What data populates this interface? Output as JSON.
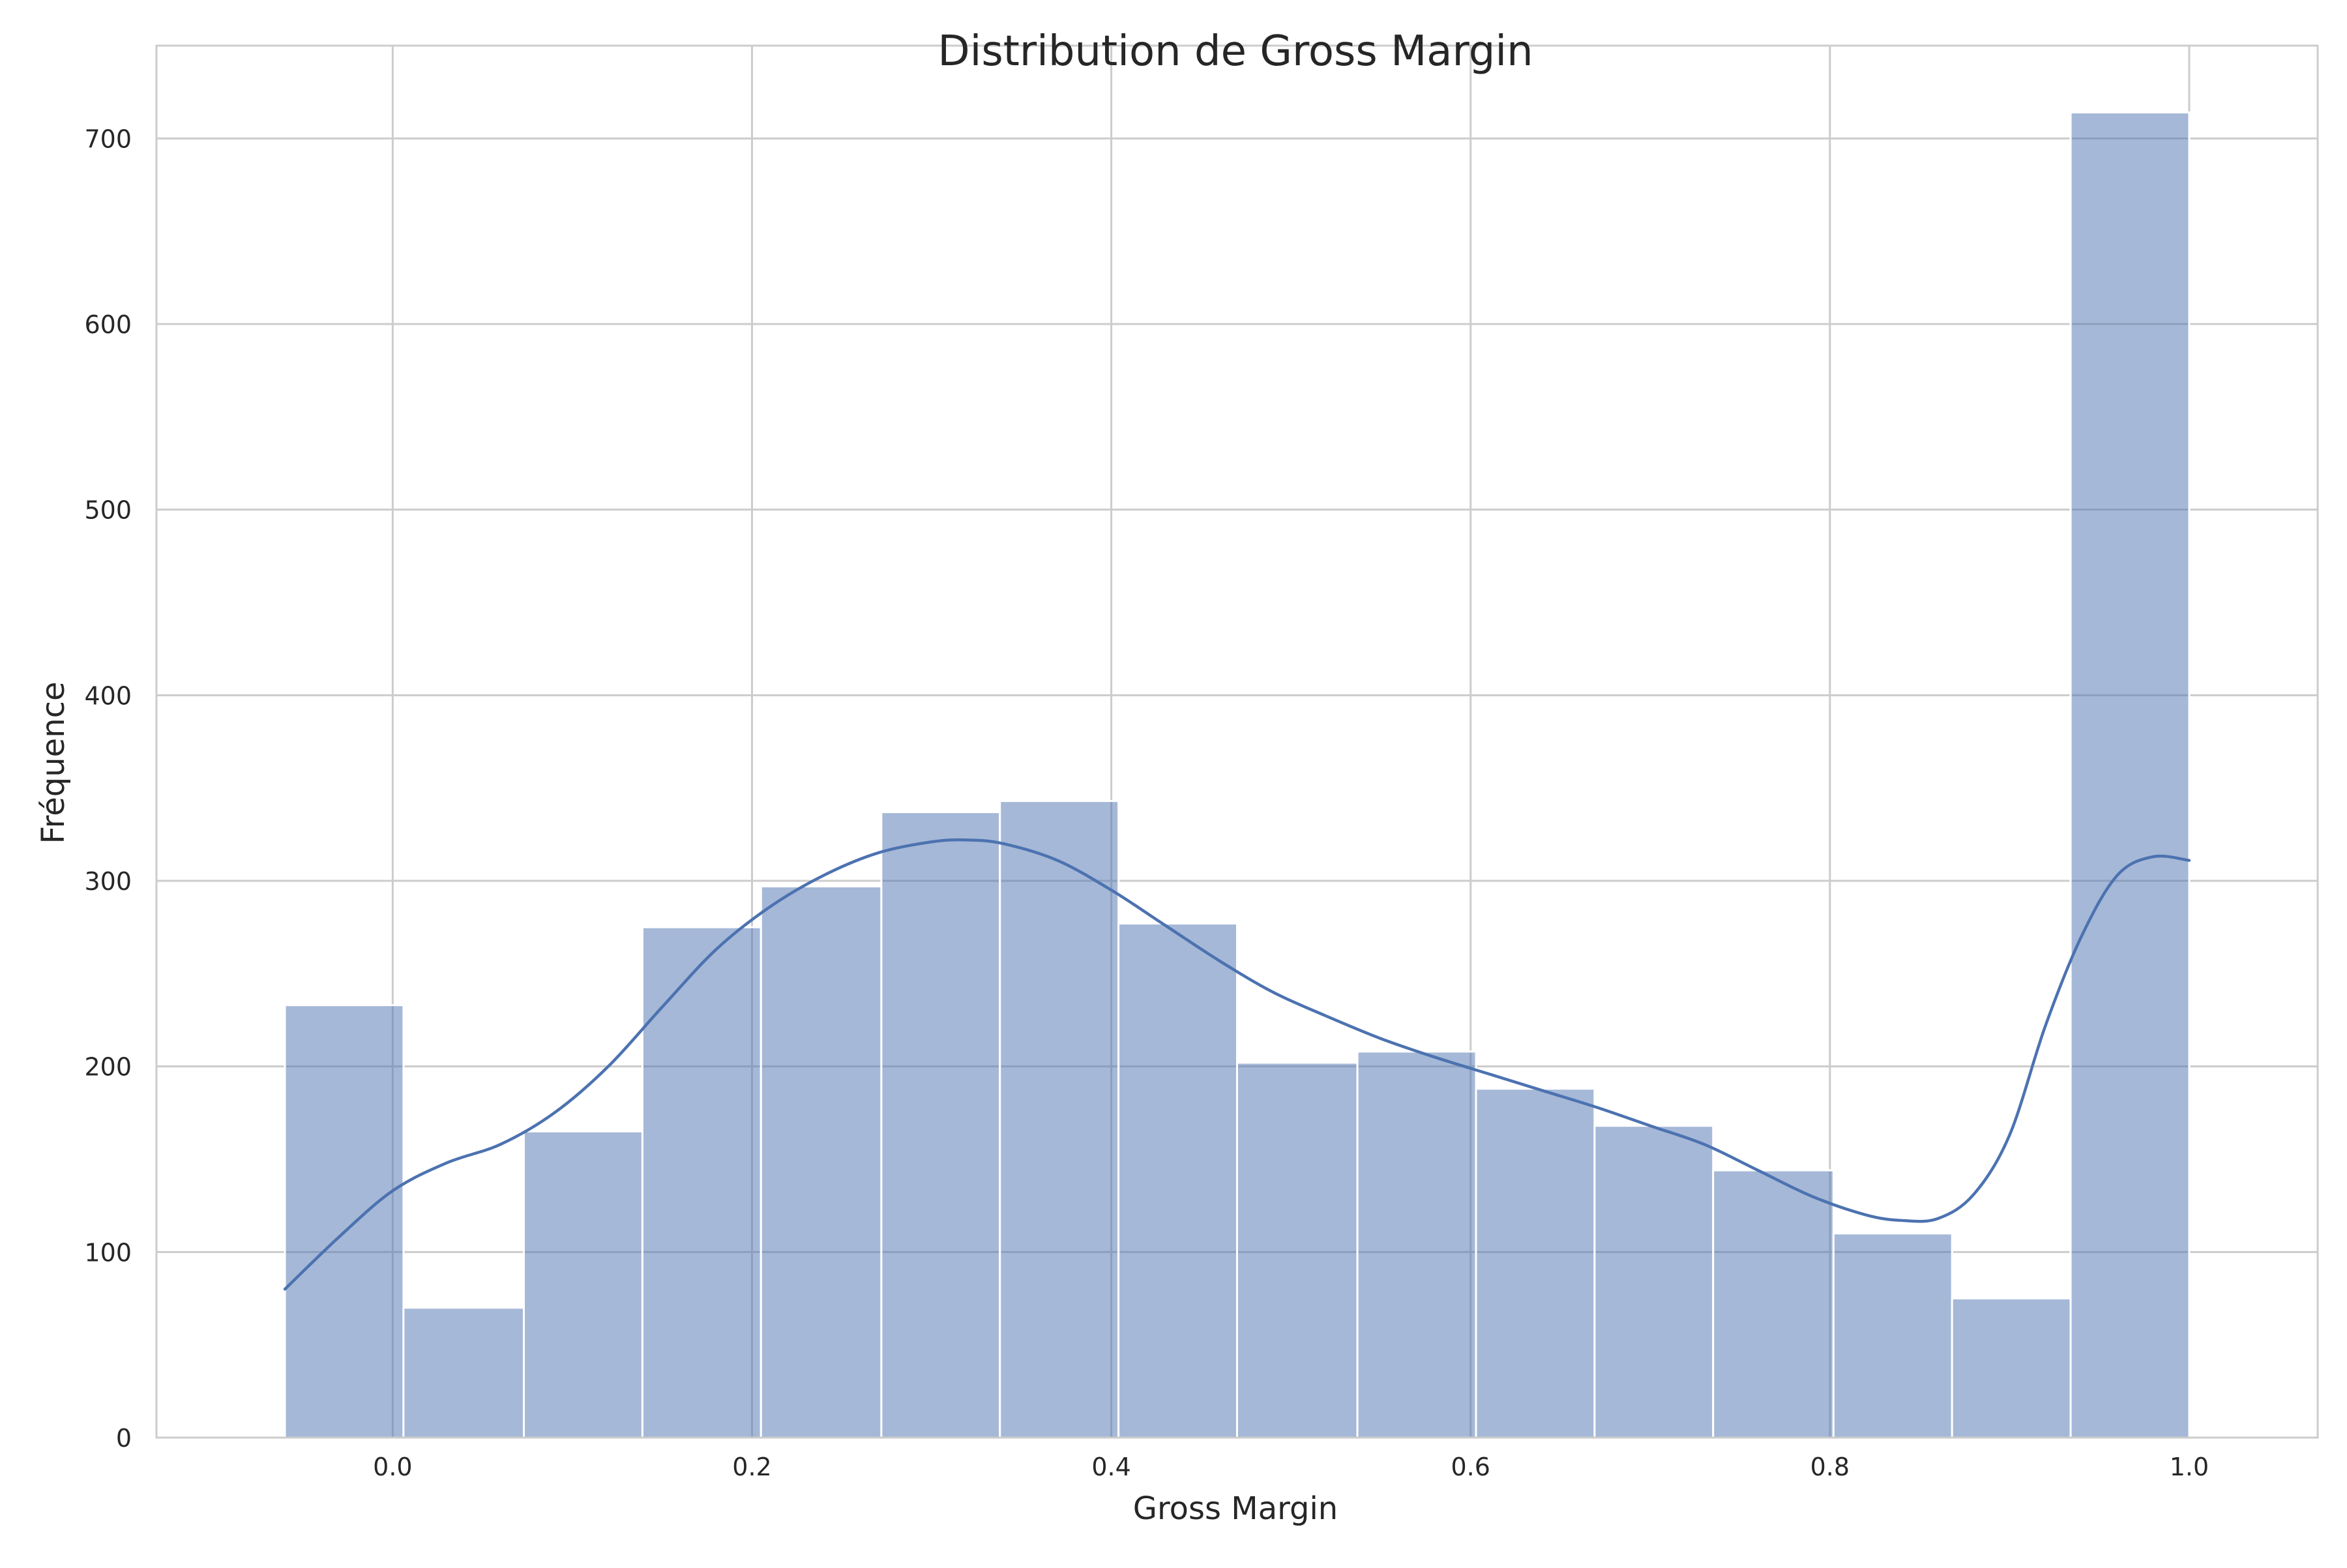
{
  "chart_data": {
    "type": "bar",
    "title": "Distribution de Gross Margin",
    "xlabel": "Gross Margin",
    "ylabel": "Fréquence",
    "xlim": [
      -0.1315,
      1.0715
    ],
    "ylim": [
      0,
      750
    ],
    "xticks": [
      0.0,
      0.2,
      0.4,
      0.6,
      0.8,
      1.0
    ],
    "xtick_labels": [
      "0.0",
      "0.2",
      "0.4",
      "0.6",
      "0.8",
      "1.0"
    ],
    "yticks": [
      0,
      100,
      200,
      300,
      400,
      500,
      600,
      700
    ],
    "ytick_labels": [
      "0",
      "100",
      "200",
      "300",
      "400",
      "500",
      "600",
      "700"
    ],
    "grid": true,
    "bins": [
      {
        "x0": -0.06,
        "x1": 0.006,
        "count": 233
      },
      {
        "x0": 0.006,
        "x1": 0.073,
        "count": 70
      },
      {
        "x0": 0.073,
        "x1": 0.139,
        "count": 165
      },
      {
        "x0": 0.139,
        "x1": 0.205,
        "count": 275
      },
      {
        "x0": 0.205,
        "x1": 0.272,
        "count": 297
      },
      {
        "x0": 0.272,
        "x1": 0.338,
        "count": 337
      },
      {
        "x0": 0.338,
        "x1": 0.404,
        "count": 343
      },
      {
        "x0": 0.404,
        "x1": 0.47,
        "count": 277
      },
      {
        "x0": 0.47,
        "x1": 0.537,
        "count": 202
      },
      {
        "x0": 0.537,
        "x1": 0.603,
        "count": 208
      },
      {
        "x0": 0.603,
        "x1": 0.669,
        "count": 188
      },
      {
        "x0": 0.669,
        "x1": 0.735,
        "count": 168
      },
      {
        "x0": 0.735,
        "x1": 0.802,
        "count": 144
      },
      {
        "x0": 0.802,
        "x1": 0.868,
        "count": 110
      },
      {
        "x0": 0.868,
        "x1": 0.934,
        "count": 75
      },
      {
        "x0": 0.934,
        "x1": 1.0,
        "count": 714
      }
    ],
    "kde": {
      "x": [
        -0.06,
        -0.03,
        0.0,
        0.03,
        0.06,
        0.09,
        0.12,
        0.15,
        0.18,
        0.21,
        0.24,
        0.27,
        0.3,
        0.32,
        0.34,
        0.37,
        0.4,
        0.43,
        0.46,
        0.49,
        0.52,
        0.55,
        0.58,
        0.61,
        0.64,
        0.67,
        0.7,
        0.73,
        0.76,
        0.79,
        0.82,
        0.84,
        0.86,
        0.88,
        0.9,
        0.92,
        0.94,
        0.96,
        0.98,
        1.0
      ],
      "y": [
        80,
        108,
        133,
        148,
        158,
        175,
        200,
        232,
        263,
        286,
        303,
        315,
        321,
        322,
        320,
        311,
        295,
        276,
        257,
        240,
        227,
        215,
        205,
        196,
        187,
        178,
        168,
        158,
        144,
        130,
        120,
        117,
        118,
        131,
        163,
        222,
        270,
        303,
        313,
        311
      ]
    },
    "colors": {
      "bar_fill": "#4c72b0",
      "bar_alpha": 0.5,
      "bar_edge": "#ffffff",
      "kde_line": "#4c72b0",
      "grid": "#cccccc",
      "spine": "#cccccc"
    }
  }
}
